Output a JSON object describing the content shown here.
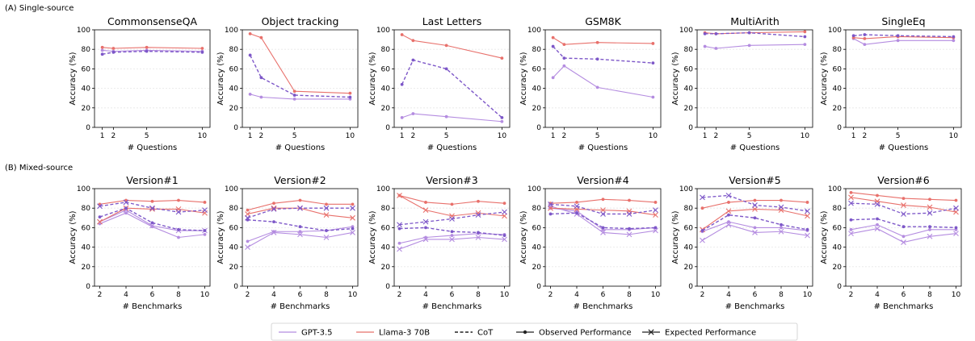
{
  "section_a_label": "(A) Single-source",
  "section_b_label": "(B) Mixed-source",
  "colors": {
    "gpt": "#b48ce0",
    "llama": "#e8706b",
    "cot": "#7d57c8",
    "expected": "#7d57c8"
  },
  "legend": [
    {
      "label": "GPT-3.5",
      "style": "gpt"
    },
    {
      "label": "Llama-3 70B",
      "style": "llama"
    },
    {
      "label": "CoT",
      "style": "cot"
    },
    {
      "label": "Observed Performance",
      "style": "observed"
    },
    {
      "label": "Expected Performance",
      "style": "expected"
    }
  ],
  "chart_data": [
    {
      "type": "line",
      "title": "CommonsenseQA",
      "xlabel": "# Questions",
      "ylabel": "Accuracy (%)",
      "x": [
        1,
        2,
        5,
        10
      ],
      "xlim": [
        0.3,
        10.7
      ],
      "ylim": [
        0,
        100
      ],
      "yticks": [
        0,
        20,
        40,
        60,
        80,
        100
      ],
      "series": [
        {
          "name": "GPT-3.5",
          "values": [
            79,
            78,
            79,
            78
          ],
          "style": "gpt",
          "marker": "dot"
        },
        {
          "name": "Llama-3 70B",
          "values": [
            82,
            81,
            82,
            81
          ],
          "style": "llama",
          "marker": "dot"
        },
        {
          "name": "CoT",
          "values": [
            75,
            77,
            78,
            77
          ],
          "style": "cot",
          "marker": "dot"
        }
      ]
    },
    {
      "type": "line",
      "title": "Object tracking",
      "xlabel": "# Questions",
      "ylabel": "Accuracy (%)",
      "x": [
        1,
        2,
        5,
        10
      ],
      "xlim": [
        0.3,
        10.7
      ],
      "ylim": [
        0,
        100
      ],
      "yticks": [
        0,
        20,
        40,
        60,
        80,
        100
      ],
      "series": [
        {
          "name": "GPT-3.5",
          "values": [
            34,
            31,
            29,
            29
          ],
          "style": "gpt",
          "marker": "dot"
        },
        {
          "name": "Llama-3 70B",
          "values": [
            96,
            92,
            37,
            35
          ],
          "style": "llama",
          "marker": "dot"
        },
        {
          "name": "CoT",
          "values": [
            74,
            51,
            33,
            31
          ],
          "style": "cot",
          "marker": "dot"
        }
      ]
    },
    {
      "type": "line",
      "title": "Last Letters",
      "xlabel": "# Questions",
      "ylabel": "Accuracy (%)",
      "x": [
        1,
        2,
        5,
        10
      ],
      "xlim": [
        0.3,
        10.7
      ],
      "ylim": [
        0,
        100
      ],
      "yticks": [
        0,
        20,
        40,
        60,
        80,
        100
      ],
      "series": [
        {
          "name": "GPT-3.5",
          "values": [
            10,
            14,
            11,
            6
          ],
          "style": "gpt",
          "marker": "dot"
        },
        {
          "name": "Llama-3 70B",
          "values": [
            95,
            89,
            84,
            71
          ],
          "style": "llama",
          "marker": "dot"
        },
        {
          "name": "CoT",
          "values": [
            44,
            69,
            60,
            10
          ],
          "style": "cot",
          "marker": "dot"
        }
      ]
    },
    {
      "type": "line",
      "title": "GSM8K",
      "xlabel": "# Questions",
      "ylabel": "Accuracy (%)",
      "x": [
        1,
        2,
        5,
        10
      ],
      "xlim": [
        0.3,
        10.7
      ],
      "ylim": [
        0,
        100
      ],
      "yticks": [
        0,
        20,
        40,
        60,
        80,
        100
      ],
      "series": [
        {
          "name": "GPT-3.5",
          "values": [
            51,
            63,
            41,
            31
          ],
          "style": "gpt",
          "marker": "dot"
        },
        {
          "name": "Llama-3 70B",
          "values": [
            92,
            85,
            87,
            86
          ],
          "style": "llama",
          "marker": "dot"
        },
        {
          "name": "CoT",
          "values": [
            83,
            71,
            70,
            66
          ],
          "style": "cot",
          "marker": "dot"
        }
      ]
    },
    {
      "type": "line",
      "title": "MultiArith",
      "xlabel": "# Questions",
      "ylabel": "Accuracy (%)",
      "x": [
        1,
        2,
        5,
        10
      ],
      "xlim": [
        0.3,
        10.7
      ],
      "ylim": [
        0,
        100
      ],
      "yticks": [
        0,
        20,
        40,
        60,
        80,
        100
      ],
      "series": [
        {
          "name": "GPT-3.5",
          "values": [
            83,
            81,
            84,
            85
          ],
          "style": "gpt",
          "marker": "dot"
        },
        {
          "name": "Llama-3 70B",
          "values": [
            97,
            96,
            97,
            98
          ],
          "style": "llama",
          "marker": "dot"
        },
        {
          "name": "CoT",
          "values": [
            96,
            96,
            97,
            93
          ],
          "style": "cot",
          "marker": "dot"
        }
      ]
    },
    {
      "type": "line",
      "title": "SingleEq",
      "xlabel": "# Questions",
      "ylabel": "Accuracy (%)",
      "x": [
        1,
        2,
        5,
        10
      ],
      "xlim": [
        0.3,
        10.7
      ],
      "ylim": [
        0,
        100
      ],
      "yticks": [
        0,
        20,
        40,
        60,
        80,
        100
      ],
      "series": [
        {
          "name": "GPT-3.5",
          "values": [
            91,
            85,
            89,
            89
          ],
          "style": "gpt",
          "marker": "dot"
        },
        {
          "name": "Llama-3 70B",
          "values": [
            92,
            91,
            93,
            92
          ],
          "style": "llama",
          "marker": "dot"
        },
        {
          "name": "CoT",
          "values": [
            94,
            95,
            94,
            93
          ],
          "style": "cot",
          "marker": "dot"
        }
      ]
    },
    {
      "type": "line",
      "title": "Version#1",
      "xlabel": "# Benchmarks",
      "ylabel": "Accuracy (%)",
      "x": [
        2,
        4,
        6,
        8,
        10
      ],
      "xlim": [
        1.6,
        10.4
      ],
      "ylim": [
        0,
        100
      ],
      "yticks": [
        0,
        20,
        40,
        60,
        80,
        100
      ],
      "series": [
        {
          "name": "GPT-3.5",
          "values": [
            64,
            75,
            61,
            50,
            53
          ],
          "style": "gpt",
          "marker": "dot"
        },
        {
          "name": "GPT-3.5 expected",
          "values": [
            66,
            78,
            62,
            57,
            57
          ],
          "style": "gpt",
          "marker": "x"
        },
        {
          "name": "Llama-3 70B",
          "values": [
            84,
            88,
            87,
            88,
            86
          ],
          "style": "llama",
          "marker": "dot"
        },
        {
          "name": "Llama-3 70B expected",
          "values": [
            66,
            80,
            79,
            79,
            75
          ],
          "style": "llama",
          "marker": "x"
        },
        {
          "name": "CoT",
          "values": [
            71,
            80,
            65,
            58,
            57
          ],
          "style": "cot",
          "marker": "dot"
        },
        {
          "name": "CoT expected",
          "values": [
            82,
            86,
            80,
            76,
            78
          ],
          "style": "cot",
          "marker": "x"
        }
      ]
    },
    {
      "type": "line",
      "title": "Version#2",
      "xlabel": "# Benchmarks",
      "ylabel": "Accuracy (%)",
      "x": [
        2,
        4,
        6,
        8,
        10
      ],
      "xlim": [
        1.6,
        10.4
      ],
      "ylim": [
        0,
        100
      ],
      "yticks": [
        0,
        20,
        40,
        60,
        80,
        100
      ],
      "series": [
        {
          "name": "GPT-3.5",
          "values": [
            46,
            56,
            56,
            57,
            61
          ],
          "style": "gpt",
          "marker": "dot"
        },
        {
          "name": "GPT-3.5 expected",
          "values": [
            40,
            55,
            53,
            50,
            55
          ],
          "style": "gpt",
          "marker": "x"
        },
        {
          "name": "Llama-3 70B",
          "values": [
            78,
            85,
            88,
            84,
            84
          ],
          "style": "llama",
          "marker": "dot"
        },
        {
          "name": "Llama-3 70B expected",
          "values": [
            74,
            80,
            80,
            73,
            70
          ],
          "style": "llama",
          "marker": "x"
        },
        {
          "name": "CoT",
          "values": [
            68,
            66,
            61,
            57,
            59
          ],
          "style": "cot",
          "marker": "dot"
        },
        {
          "name": "CoT expected",
          "values": [
            70,
            79,
            80,
            80,
            80
          ],
          "style": "cot",
          "marker": "x"
        }
      ]
    },
    {
      "type": "line",
      "title": "Version#3",
      "xlabel": "# Benchmarks",
      "ylabel": "Accuracy (%)",
      "x": [
        2,
        4,
        6,
        8,
        10
      ],
      "xlim": [
        1.6,
        10.4
      ],
      "ylim": [
        0,
        100
      ],
      "yticks": [
        0,
        20,
        40,
        60,
        80,
        100
      ],
      "series": [
        {
          "name": "GPT-3.5",
          "values": [
            44,
            50,
            52,
            54,
            53
          ],
          "style": "gpt",
          "marker": "dot"
        },
        {
          "name": "GPT-3.5 expected",
          "values": [
            38,
            48,
            48,
            50,
            48
          ],
          "style": "gpt",
          "marker": "x"
        },
        {
          "name": "Llama-3 70B",
          "values": [
            93,
            86,
            84,
            87,
            85
          ],
          "style": "llama",
          "marker": "dot"
        },
        {
          "name": "Llama-3 70B expected",
          "values": [
            93,
            78,
            72,
            75,
            72
          ],
          "style": "llama",
          "marker": "x"
        },
        {
          "name": "CoT",
          "values": [
            59,
            60,
            56,
            55,
            52
          ],
          "style": "cot",
          "marker": "dot"
        },
        {
          "name": "CoT expected",
          "values": [
            63,
            66,
            69,
            73,
            76
          ],
          "style": "cot",
          "marker": "x"
        }
      ]
    },
    {
      "type": "line",
      "title": "Version#4",
      "xlabel": "# Benchmarks",
      "ylabel": "Accuracy (%)",
      "x": [
        2,
        4,
        6,
        8,
        10
      ],
      "xlim": [
        1.6,
        10.4
      ],
      "ylim": [
        0,
        100
      ],
      "yticks": [
        0,
        20,
        40,
        60,
        80,
        100
      ],
      "series": [
        {
          "name": "GPT-3.5",
          "values": [
            80,
            77,
            58,
            58,
            60
          ],
          "style": "gpt",
          "marker": "dot"
        },
        {
          "name": "GPT-3.5 expected",
          "values": [
            82,
            74,
            55,
            53,
            57
          ],
          "style": "gpt",
          "marker": "x"
        },
        {
          "name": "Llama-3 70B",
          "values": [
            85,
            86,
            89,
            88,
            86
          ],
          "style": "llama",
          "marker": "dot"
        },
        {
          "name": "Llama-3 70B expected",
          "values": [
            80,
            79,
            78,
            77,
            73
          ],
          "style": "llama",
          "marker": "x"
        },
        {
          "name": "CoT",
          "values": [
            74,
            75,
            60,
            59,
            60
          ],
          "style": "cot",
          "marker": "dot"
        },
        {
          "name": "CoT expected",
          "values": [
            84,
            82,
            74,
            74,
            78
          ],
          "style": "cot",
          "marker": "x"
        }
      ]
    },
    {
      "type": "line",
      "title": "Version#5",
      "xlabel": "# Benchmarks",
      "ylabel": "Accuracy (%)",
      "x": [
        2,
        4,
        6,
        8,
        10
      ],
      "xlim": [
        1.6,
        10.4
      ],
      "ylim": [
        0,
        100
      ],
      "yticks": [
        0,
        20,
        40,
        60,
        80,
        100
      ],
      "series": [
        {
          "name": "GPT-3.5",
          "values": [
            56,
            66,
            60,
            60,
            57
          ],
          "style": "gpt",
          "marker": "dot"
        },
        {
          "name": "GPT-3.5 expected",
          "values": [
            47,
            63,
            55,
            56,
            52
          ],
          "style": "gpt",
          "marker": "x"
        },
        {
          "name": "Llama-3 70B",
          "values": [
            80,
            86,
            88,
            88,
            86
          ],
          "style": "llama",
          "marker": "dot"
        },
        {
          "name": "Llama-3 70B expected",
          "values": [
            58,
            77,
            79,
            78,
            72
          ],
          "style": "llama",
          "marker": "x"
        },
        {
          "name": "CoT",
          "values": [
            57,
            73,
            70,
            63,
            58
          ],
          "style": "cot",
          "marker": "dot"
        },
        {
          "name": "CoT expected",
          "values": [
            91,
            93,
            83,
            81,
            77
          ],
          "style": "cot",
          "marker": "x"
        }
      ]
    },
    {
      "type": "line",
      "title": "Version#6",
      "xlabel": "# Benchmarks",
      "ylabel": "Accuracy (%)",
      "x": [
        2,
        4,
        6,
        8,
        10
      ],
      "xlim": [
        1.6,
        10.4
      ],
      "ylim": [
        0,
        100
      ],
      "yticks": [
        0,
        20,
        40,
        60,
        80,
        100
      ],
      "series": [
        {
          "name": "GPT-3.5",
          "values": [
            58,
            63,
            51,
            58,
            58
          ],
          "style": "gpt",
          "marker": "dot"
        },
        {
          "name": "GPT-3.5 expected",
          "values": [
            54,
            59,
            45,
            51,
            54
          ],
          "style": "gpt",
          "marker": "x"
        },
        {
          "name": "Llama-3 70B",
          "values": [
            96,
            93,
            90,
            89,
            88
          ],
          "style": "llama",
          "marker": "dot"
        },
        {
          "name": "Llama-3 70B expected",
          "values": [
            91,
            87,
            83,
            81,
            76
          ],
          "style": "llama",
          "marker": "x"
        },
        {
          "name": "CoT",
          "values": [
            68,
            69,
            61,
            61,
            60
          ],
          "style": "cot",
          "marker": "dot"
        },
        {
          "name": "CoT expected",
          "values": [
            85,
            84,
            74,
            75,
            80
          ],
          "style": "cot",
          "marker": "x"
        }
      ]
    }
  ]
}
